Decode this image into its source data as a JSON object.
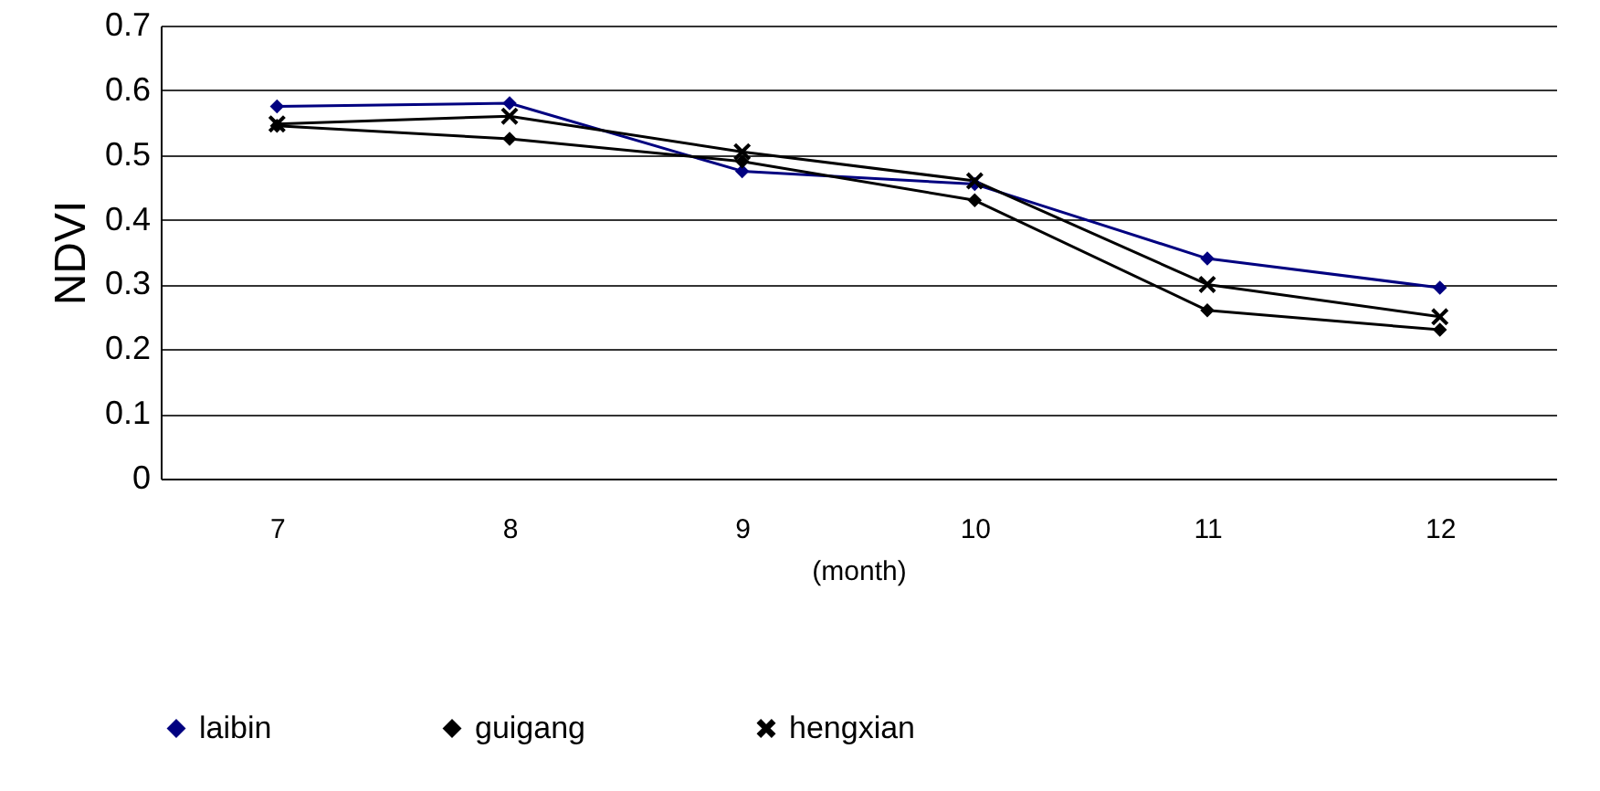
{
  "chart_data": {
    "type": "line",
    "xlabel": "(month)",
    "ylabel": "NDVI",
    "categories": [
      "7",
      "8",
      "9",
      "10",
      "11",
      "12"
    ],
    "series": [
      {
        "name": "laibin",
        "color": "#000080",
        "marker": "diamond",
        "values": [
          0.575,
          0.58,
          0.475,
          0.455,
          0.34,
          0.295
        ]
      },
      {
        "name": "guigang",
        "color": "#000000",
        "marker": "diamond",
        "values": [
          0.545,
          0.525,
          0.49,
          0.43,
          0.26,
          0.23
        ]
      },
      {
        "name": "hengxian",
        "color": "#000000",
        "marker": "cross",
        "values": [
          0.548,
          0.56,
          0.505,
          0.46,
          0.3,
          0.25
        ]
      }
    ],
    "ylim": [
      0,
      0.7
    ],
    "yticks": [
      0,
      0.1,
      0.2,
      0.3,
      0.4,
      0.5,
      0.6,
      0.7
    ],
    "grid": "y",
    "legend": "bottom",
    "line_style": "solid"
  }
}
